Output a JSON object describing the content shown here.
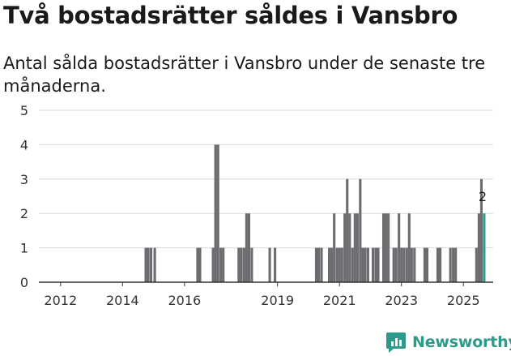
{
  "chart_data": {
    "type": "bar",
    "title": "Två bostadsrätter såldes i Vansbro",
    "subtitle": "Antal sålda bostadsrätter i Vansbro under de senaste tre månaderna.",
    "xlabel": "",
    "ylabel": "",
    "ylim": [
      0,
      5
    ],
    "yticks": [
      "0",
      "1",
      "2",
      "3",
      "4",
      "5"
    ],
    "xlim": [
      2011.3,
      2025.96
    ],
    "xticks": [
      {
        "label": "2012",
        "year": 2012.0
      },
      {
        "label": "2014",
        "year": 2014.0
      },
      {
        "label": "2016",
        "year": 2016.0
      },
      {
        "label": "2019",
        "year": 2019.0
      },
      {
        "label": "2021",
        "year": 2021.0
      },
      {
        "label": "2023",
        "year": 2023.0
      },
      {
        "label": "2025",
        "year": 2025.0
      }
    ],
    "bar_width_years": 0.083,
    "series": [
      {
        "name": "Sålda bostadsrätter",
        "color": "#6b6b70",
        "points": [
          {
            "x": 2014.75,
            "y": 1
          },
          {
            "x": 2014.83,
            "y": 1
          },
          {
            "x": 2014.92,
            "y": 1
          },
          {
            "x": 2015.04,
            "y": 1
          },
          {
            "x": 2016.42,
            "y": 1
          },
          {
            "x": 2016.5,
            "y": 1
          },
          {
            "x": 2016.92,
            "y": 1
          },
          {
            "x": 2017.0,
            "y": 4
          },
          {
            "x": 2017.08,
            "y": 4
          },
          {
            "x": 2017.17,
            "y": 1
          },
          {
            "x": 2017.25,
            "y": 1
          },
          {
            "x": 2017.75,
            "y": 1
          },
          {
            "x": 2017.83,
            "y": 1
          },
          {
            "x": 2017.92,
            "y": 1
          },
          {
            "x": 2018.0,
            "y": 2
          },
          {
            "x": 2018.08,
            "y": 2
          },
          {
            "x": 2018.17,
            "y": 1
          },
          {
            "x": 2018.75,
            "y": 1
          },
          {
            "x": 2018.92,
            "y": 1
          },
          {
            "x": 2020.25,
            "y": 1
          },
          {
            "x": 2020.33,
            "y": 1
          },
          {
            "x": 2020.42,
            "y": 1
          },
          {
            "x": 2020.67,
            "y": 1
          },
          {
            "x": 2020.75,
            "y": 1
          },
          {
            "x": 2020.83,
            "y": 2
          },
          {
            "x": 2020.92,
            "y": 1
          },
          {
            "x": 2021.0,
            "y": 1
          },
          {
            "x": 2021.08,
            "y": 1
          },
          {
            "x": 2021.17,
            "y": 2
          },
          {
            "x": 2021.25,
            "y": 3
          },
          {
            "x": 2021.33,
            "y": 2
          },
          {
            "x": 2021.42,
            "y": 1
          },
          {
            "x": 2021.5,
            "y": 2
          },
          {
            "x": 2021.58,
            "y": 2
          },
          {
            "x": 2021.67,
            "y": 3
          },
          {
            "x": 2021.75,
            "y": 1
          },
          {
            "x": 2021.83,
            "y": 1
          },
          {
            "x": 2021.92,
            "y": 1
          },
          {
            "x": 2022.08,
            "y": 1
          },
          {
            "x": 2022.17,
            "y": 1
          },
          {
            "x": 2022.25,
            "y": 1
          },
          {
            "x": 2022.42,
            "y": 2
          },
          {
            "x": 2022.5,
            "y": 2
          },
          {
            "x": 2022.58,
            "y": 2
          },
          {
            "x": 2022.75,
            "y": 1
          },
          {
            "x": 2022.83,
            "y": 1
          },
          {
            "x": 2022.92,
            "y": 2
          },
          {
            "x": 2023.0,
            "y": 1
          },
          {
            "x": 2023.08,
            "y": 1
          },
          {
            "x": 2023.17,
            "y": 1
          },
          {
            "x": 2023.25,
            "y": 2
          },
          {
            "x": 2023.33,
            "y": 1
          },
          {
            "x": 2023.42,
            "y": 1
          },
          {
            "x": 2023.75,
            "y": 1
          },
          {
            "x": 2023.83,
            "y": 1
          },
          {
            "x": 2024.17,
            "y": 1
          },
          {
            "x": 2024.25,
            "y": 1
          },
          {
            "x": 2024.58,
            "y": 1
          },
          {
            "x": 2024.67,
            "y": 1
          },
          {
            "x": 2024.75,
            "y": 1
          },
          {
            "x": 2025.42,
            "y": 1
          },
          {
            "x": 2025.5,
            "y": 2
          },
          {
            "x": 2025.58,
            "y": 3
          }
        ]
      },
      {
        "name": "Senaste tre månaderna",
        "color": "#2e9a8c",
        "points": [
          {
            "x": 2025.67,
            "y": 2
          }
        ]
      }
    ],
    "annotations": [
      {
        "text": "2",
        "x": 2025.62,
        "y": 2
      }
    ],
    "colors": {
      "bar": "#6b6b70",
      "highlight": "#2e9a8c",
      "grid": "#d9d9d9",
      "axis": "#333333"
    }
  },
  "brand": {
    "name": "Newsworthy",
    "color": "#2e9a8c",
    "icon": "newsworthy-logo-icon"
  }
}
